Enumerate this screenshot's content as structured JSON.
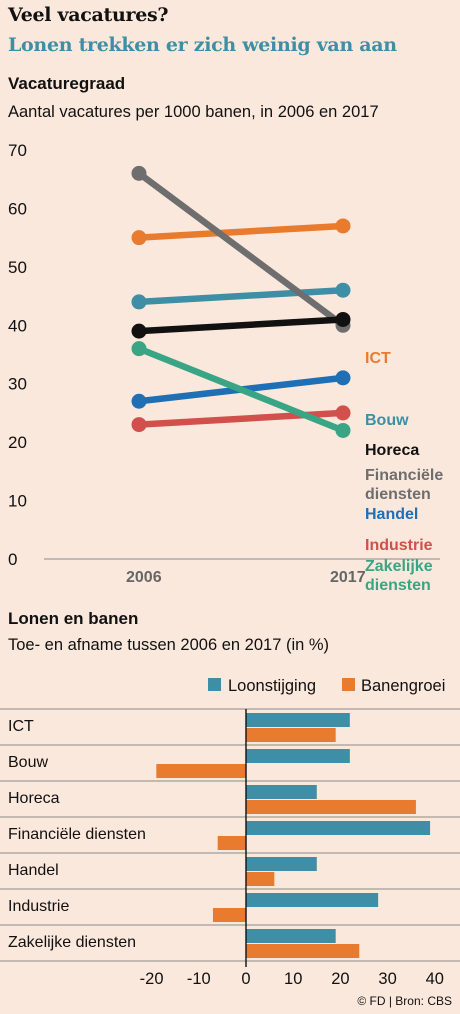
{
  "header": {
    "title": "Veel vacatures?",
    "subtitle": "Lonen trekken er zich weinig van aan"
  },
  "chart1_header": {
    "title": "Vacaturegraad",
    "subtitle": "Aantal vacatures per 1000 banen, in 2006 en 2017"
  },
  "chart2_header": {
    "title": "Lonen en banen",
    "subtitle": "Toe- en afname tussen 2006 en 2017 (in %)"
  },
  "credit": "© FD | Bron: CBS",
  "colors": {
    "ICT": "#e87b2e",
    "Bouw": "#3e8ea6",
    "Horeca": "#111111",
    "Financiële diensten": "#6e6e6e",
    "Handel": "#1f6fb5",
    "Industrie": "#d1504b",
    "Zakelijke diensten": "#3aa584",
    "loon": "#3e8ea6",
    "banen": "#e87b2e"
  },
  "chart_data": [
    {
      "type": "line",
      "x": [
        "2006",
        "2017"
      ],
      "ylim": [
        0,
        70
      ],
      "yticks": [
        0,
        10,
        20,
        30,
        40,
        50,
        60,
        70
      ],
      "series": [
        {
          "name": "ICT",
          "label_lines": [
            "ICT"
          ],
          "values": [
            55,
            57
          ]
        },
        {
          "name": "Bouw",
          "label_lines": [
            "Bouw"
          ],
          "values": [
            44,
            46
          ]
        },
        {
          "name": "Horeca",
          "label_lines": [
            "Horeca"
          ],
          "values": [
            39,
            41
          ]
        },
        {
          "name": "Financiële diensten",
          "label_lines": [
            "Financiële",
            "diensten"
          ],
          "values": [
            66,
            40
          ]
        },
        {
          "name": "Handel",
          "label_lines": [
            "Handel"
          ],
          "values": [
            27,
            31
          ]
        },
        {
          "name": "Industrie",
          "label_lines": [
            "Industrie"
          ],
          "values": [
            23,
            25
          ]
        },
        {
          "name": "Zakelijke diensten",
          "label_lines": [
            "Zakelijke",
            "diensten"
          ],
          "values": [
            36,
            22
          ]
        }
      ]
    },
    {
      "type": "bar",
      "orientation": "horizontal",
      "categories": [
        "ICT",
        "Bouw",
        "Horeca",
        "Financiële diensten",
        "Handel",
        "Industrie",
        "Zakelijke diensten"
      ],
      "xlim": [
        -20,
        40
      ],
      "xticks": [
        -20,
        -10,
        0,
        10,
        20,
        30,
        40
      ],
      "legend": "top-right",
      "series": [
        {
          "name": "Loonstijging",
          "values": [
            22,
            22,
            15,
            39,
            15,
            28,
            19
          ]
        },
        {
          "name": "Banengroei",
          "values": [
            19,
            -19,
            36,
            -6,
            6,
            -7,
            24
          ]
        }
      ]
    }
  ]
}
